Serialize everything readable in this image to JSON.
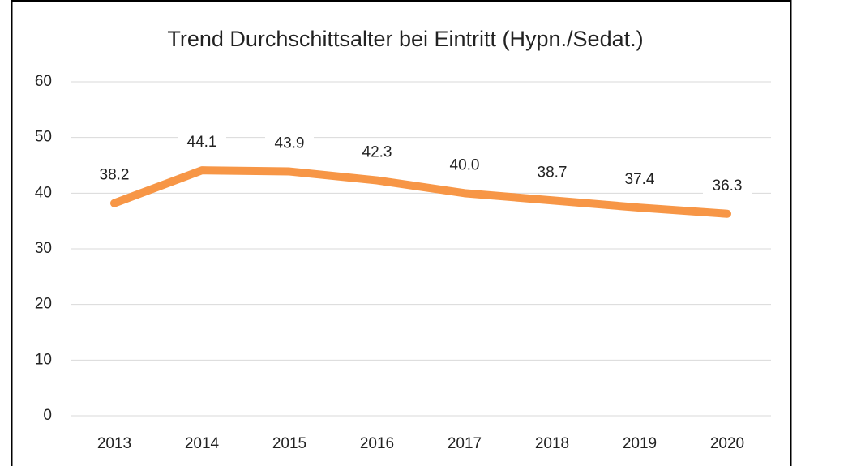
{
  "chart_data": {
    "type": "line",
    "title": "Trend Durchschittsalter bei Eintritt (Hypn./Sedat.)",
    "categories": [
      "2013",
      "2014",
      "2015",
      "2016",
      "2017",
      "2018",
      "2019",
      "2020"
    ],
    "values": [
      38.2,
      44.1,
      43.9,
      42.3,
      40.0,
      38.7,
      37.4,
      36.3
    ],
    "value_labels": [
      "38.2",
      "44.1",
      "43.9",
      "42.3",
      "40.0",
      "38.7",
      "37.4",
      "36.3"
    ],
    "color": "#f79646",
    "ylim": [
      0,
      60
    ],
    "yticks": [
      0,
      10,
      20,
      30,
      40,
      50,
      60
    ],
    "grid": true
  }
}
